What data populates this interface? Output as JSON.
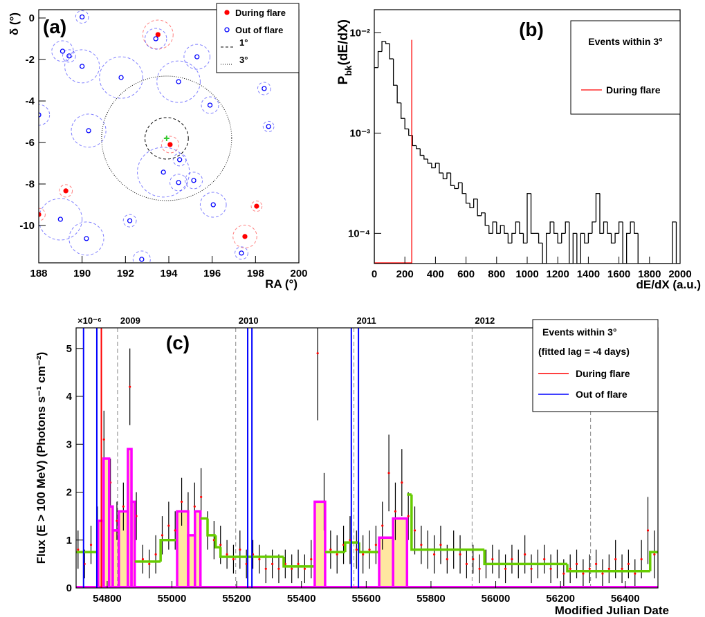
{
  "chart_data": [
    {
      "type": "scatter",
      "panel_label": "(a)",
      "xlabel": "RA (°)",
      "ylabel": "δ (°)",
      "xlim": [
        188,
        200
      ],
      "ylim": [
        -11.8,
        0.4
      ],
      "xticks": [
        188,
        190,
        192,
        194,
        196,
        198,
        200
      ],
      "yticks": [
        0,
        -2,
        -4,
        -6,
        -8,
        -10
      ],
      "series": [
        {
          "name": "During flare",
          "color": "#ff0000",
          "x": [
            193.5,
            194.06,
            189.25,
            188.0,
            198.05,
            197.51
          ],
          "values": [
            -0.8,
            -6.1,
            -8.33,
            -9.47,
            -9.07,
            -10.53
          ],
          "sizes": [
            0.7,
            0.4,
            0.3,
            0.3,
            0.25,
            0.55
          ]
        },
        {
          "name": "Out of flare",
          "color": "#0000ff",
          "x": [
            190.0,
            193.4,
            189.1,
            189.4,
            190.0,
            191.8,
            195.3,
            194.45,
            198.4,
            195.9,
            188.0,
            190.3,
            198.6,
            194.5,
            193.75,
            194.45,
            195.15,
            196.05,
            189.0,
            192.2,
            190.2,
            192.75,
            197.35
          ],
          "values": [
            0.05,
            -1.0,
            -1.6,
            -1.83,
            -2.33,
            -2.87,
            -1.87,
            -3.07,
            -3.4,
            -4.2,
            -4.67,
            -5.43,
            -5.23,
            -6.83,
            -7.43,
            -7.93,
            -7.83,
            -9.0,
            -9.7,
            -9.77,
            -10.63,
            -11.63,
            -11.33
          ],
          "sizes": [
            0.3,
            0.5,
            0.5,
            0.3,
            0.8,
            1.0,
            0.6,
            1.0,
            0.3,
            0.4,
            0.5,
            0.8,
            0.25,
            0.3,
            1.2,
            0.4,
            0.4,
            0.6,
            1.0,
            0.3,
            0.8,
            0.4,
            0.3
          ]
        }
      ],
      "circles": [
        {
          "name": "1°",
          "radius": 1,
          "style": "dashed"
        },
        {
          "name": "3°",
          "radius": 3,
          "style": "dotted"
        }
      ],
      "center": {
        "x": 193.9,
        "y": -5.8,
        "color": "#33cc33"
      }
    },
    {
      "type": "histogram",
      "panel_label": "(b)",
      "xlabel": "dE/dX (a.u.)",
      "ylabel_parts": [
        "P",
        "bk",
        "(dE/dX)"
      ],
      "log_y": true,
      "xlim": [
        0,
        2000
      ],
      "ylim": [
        5e-05,
        0.017
      ],
      "xticks": [
        0,
        200,
        400,
        600,
        800,
        1000,
        1200,
        1400,
        1600,
        1800,
        2000
      ],
      "yticks": [
        {
          "value": 0.0001,
          "label": "10⁻⁴"
        },
        {
          "value": 0.001,
          "label": "10⁻³"
        },
        {
          "value": 0.01,
          "label": "10⁻²"
        }
      ],
      "bins": [
        0,
        25,
        50,
        75,
        100,
        125,
        150,
        175,
        200,
        225,
        250,
        275,
        300,
        325,
        350,
        375,
        400,
        425,
        450,
        475,
        500,
        525,
        550,
        575,
        600,
        625,
        650,
        675,
        700,
        725,
        750,
        775,
        800,
        825,
        850,
        875,
        900,
        925,
        950,
        975,
        1000,
        1025,
        1050,
        1075,
        1100,
        1125,
        1150,
        1175,
        1200,
        1225,
        1250,
        1275,
        1300,
        1325,
        1350,
        1375,
        1400,
        1425,
        1450,
        1475,
        1500,
        1525,
        1550,
        1575,
        1600,
        1625,
        1650,
        1675,
        1700,
        1725,
        1750,
        1775,
        1800,
        1825,
        1850,
        1875,
        1900,
        1925,
        1950,
        1975,
        2000
      ],
      "values": [
        0.0045,
        0.0065,
        0.0082,
        0.0078,
        0.0055,
        0.003,
        0.002,
        0.0014,
        0.0011,
        0.00095,
        0.00075,
        0.0007,
        0.0006,
        0.00055,
        0.0005,
        0.00045,
        0.0005,
        0.0004,
        0.00035,
        0.0004,
        0.0003,
        0.00028,
        0.00032,
        0.00025,
        0.0002,
        0.00018,
        0.00022,
        0.00015,
        0.00016,
        0.00012,
        0.0001,
        0.00013,
        0.0001,
        0.00012,
        0.0001,
        8e-05,
        0.0001,
        0.00013,
        0.0001,
        8e-05,
        0.00025,
        0.0001,
        0.0001,
        8e-05,
        0,
        0.0001,
        0.00013,
        0.0001,
        8e-05,
        0.0001,
        0.00013,
        0,
        0.0001,
        0,
        0.0001,
        8e-05,
        0.0001,
        0.00013,
        0.00025,
        0.0001,
        0.00013,
        0.0001,
        8e-05,
        0.0001,
        0.00013,
        0,
        0.0001,
        0.00013,
        0.0001,
        0,
        0,
        0,
        0,
        0,
        0,
        0,
        0,
        0,
        0.00013,
        0
      ],
      "color": "#000000",
      "legend_title": "Events within 3°",
      "flare": {
        "name": "During flare",
        "color": "#ff0000",
        "x": 245,
        "value": 0.0085
      }
    },
    {
      "type": "errorbar",
      "panel_label": "(c)",
      "xlabel": "Modified Julian Date",
      "ylabel": "Flux (E > 100 MeV) (Photons s⁻¹ cm⁻²)",
      "y_multiplier": "×10⁻⁶",
      "xlim": [
        54704,
        56501
      ],
      "ylim": [
        0,
        5.43
      ],
      "xticks": [
        54800,
        55000,
        55200,
        55400,
        55600,
        55800,
        56000,
        56200,
        56400
      ],
      "yticks": [
        0,
        1,
        2,
        3,
        4,
        5
      ],
      "x": [
        54710,
        54730,
        54750,
        54770,
        54790,
        54810,
        54830,
        54850,
        54870,
        54890,
        54910,
        54930,
        54950,
        54970,
        54990,
        55010,
        55030,
        55050,
        55070,
        55090,
        55110,
        55130,
        55150,
        55170,
        55190,
        55210,
        55230,
        55250,
        55270,
        55290,
        55310,
        55330,
        55350,
        55370,
        55390,
        55410,
        55430,
        55450,
        55470,
        55490,
        55510,
        55530,
        55550,
        55570,
        55590,
        55610,
        55630,
        55650,
        55670,
        55690,
        55710,
        55730,
        55750,
        55770,
        55790,
        55810,
        55830,
        55850,
        55870,
        55890,
        55910,
        55930,
        55950,
        55970,
        55990,
        56010,
        56030,
        56050,
        56070,
        56090,
        56110,
        56130,
        56150,
        56170,
        56190,
        56210,
        56230,
        56250,
        56270,
        56290,
        56310,
        56330,
        56350,
        56370,
        56390,
        56410,
        56430,
        56450,
        56470,
        56490
      ],
      "values": [
        0.8,
        0.5,
        0.9,
        1.2,
        3.1,
        2.2,
        1.4,
        1.7,
        4.2,
        1.5,
        0.6,
        0.5,
        0.7,
        1.1,
        1.3,
        1.2,
        1.8,
        1.5,
        1.7,
        1.9,
        1.2,
        1.0,
        0.9,
        0.7,
        0.6,
        0.8,
        0.5,
        0.7,
        0.6,
        0.4,
        0.5,
        0.4,
        0.5,
        0.4,
        0.5,
        0.4,
        0.6,
        4.9,
        1.8,
        0.8,
        0.7,
        0.9,
        1.0,
        0.8,
        0.7,
        0.8,
        0.9,
        1.3,
        2.4,
        1.6,
        2.2,
        1.5,
        1.2,
        0.9,
        0.8,
        0.7,
        0.9,
        0.6,
        0.8,
        0.7,
        0.5,
        0.6,
        0.4,
        0.5,
        0.6,
        0.5,
        0.4,
        0.6,
        0.5,
        0.7,
        0.4,
        0.5,
        0.6,
        0.4,
        0.5,
        0.3,
        0.4,
        0.5,
        0.3,
        0.4,
        0.5,
        0.3,
        0.4,
        0.6,
        0.4,
        0.5,
        0.3,
        0.6,
        1.2,
        0.7
      ],
      "errors": [
        0.4,
        0.3,
        0.4,
        0.5,
        0.6,
        0.5,
        0.4,
        0.5,
        0.8,
        0.5,
        0.3,
        0.3,
        0.4,
        0.4,
        0.5,
        0.4,
        0.5,
        0.5,
        0.5,
        0.6,
        0.4,
        0.4,
        0.4,
        0.3,
        0.3,
        0.4,
        0.3,
        0.3,
        0.3,
        0.3,
        0.3,
        0.3,
        0.3,
        0.3,
        0.3,
        0.3,
        0.4,
        1.4,
        0.6,
        0.4,
        0.4,
        0.4,
        0.5,
        0.4,
        0.4,
        0.4,
        0.4,
        0.5,
        0.8,
        0.6,
        0.7,
        0.5,
        0.5,
        0.4,
        0.4,
        0.4,
        0.4,
        0.3,
        0.4,
        0.4,
        0.3,
        0.3,
        0.3,
        0.3,
        0.3,
        0.3,
        0.3,
        0.3,
        0.3,
        0.4,
        0.3,
        0.3,
        0.3,
        0.3,
        0.3,
        0.3,
        0.3,
        0.3,
        0.3,
        0.3,
        0.3,
        0.3,
        0.3,
        0.4,
        0.3,
        0.3,
        0.3,
        0.4,
        0.7,
        0.5
      ],
      "point_color": "#ff0000",
      "bar_color": "#000000",
      "blocks": [
        {
          "x0": 54704,
          "x1": 54772,
          "value": 0.75,
          "flare": false
        },
        {
          "x0": 54772,
          "x1": 54789,
          "value": 1.4,
          "flare": true
        },
        {
          "x0": 54789,
          "x1": 54806,
          "value": 2.7,
          "flare": true
        },
        {
          "x0": 54806,
          "x1": 54817,
          "value": 1.7,
          "flare": true
        },
        {
          "x0": 54817,
          "x1": 54836,
          "value": 1.2,
          "flare": true
        },
        {
          "x0": 54836,
          "x1": 54864,
          "value": 1.6,
          "flare": true
        },
        {
          "x0": 54864,
          "x1": 54875,
          "value": 2.9,
          "flare": true
        },
        {
          "x0": 54875,
          "x1": 54885,
          "value": 1.8,
          "flare": true
        },
        {
          "x0": 54885,
          "x1": 54965,
          "value": 0.55,
          "flare": false
        },
        {
          "x0": 54965,
          "x1": 55016,
          "value": 1.0,
          "flare": false
        },
        {
          "x0": 55016,
          "x1": 55050,
          "value": 1.6,
          "flare": true
        },
        {
          "x0": 55050,
          "x1": 55071,
          "value": 1.1,
          "flare": true
        },
        {
          "x0": 55071,
          "x1": 55088,
          "value": 1.6,
          "flare": true
        },
        {
          "x0": 55088,
          "x1": 55110,
          "value": 1.45,
          "flare": false
        },
        {
          "x0": 55110,
          "x1": 55135,
          "value": 1.1,
          "flare": false
        },
        {
          "x0": 55135,
          "x1": 55150,
          "value": 0.85,
          "flare": false
        },
        {
          "x0": 55150,
          "x1": 55345,
          "value": 0.65,
          "flare": false
        },
        {
          "x0": 55345,
          "x1": 55441,
          "value": 0.45,
          "flare": false
        },
        {
          "x0": 55441,
          "x1": 55473,
          "value": 1.8,
          "flare": true
        },
        {
          "x0": 55473,
          "x1": 55535,
          "value": 0.75,
          "flare": false
        },
        {
          "x0": 55535,
          "x1": 55578,
          "value": 0.95,
          "flare": false
        },
        {
          "x0": 55578,
          "x1": 55640,
          "value": 0.75,
          "flare": false
        },
        {
          "x0": 55640,
          "x1": 55683,
          "value": 1.05,
          "flare": true
        },
        {
          "x0": 55683,
          "x1": 55726,
          "value": 1.45,
          "flare": true
        },
        {
          "x0": 55726,
          "x1": 55740,
          "value": 1.95,
          "flare": false
        },
        {
          "x0": 55740,
          "x1": 55965,
          "value": 0.8,
          "flare": false
        },
        {
          "x0": 55965,
          "x1": 56221,
          "value": 0.5,
          "flare": false
        },
        {
          "x0": 56221,
          "x1": 56477,
          "value": 0.35,
          "flare": false
        },
        {
          "x0": 56477,
          "x1": 56501,
          "value": 0.75,
          "flare": false
        }
      ],
      "block_colors": {
        "flare": "#ff00ff",
        "quiet": "#66cc00"
      },
      "fill_color": "#ffe7a0",
      "years": {
        "x": [
          54832,
          55197,
          55562,
          55927,
          56293
        ],
        "labels": [
          "2009",
          "2010",
          "2011",
          "2012",
          null
        ]
      },
      "events": [
        {
          "name": "During flare",
          "color": "#ff0000",
          "x": [
            54782
          ]
        },
        {
          "name": "Out of flare",
          "color": "#0000ff",
          "x": [
            54727,
            54768,
            55234,
            55247,
            55554,
            55576
          ]
        }
      ],
      "legend_lines": [
        "Events within  3°",
        "(fitted lag = -4 days)"
      ]
    }
  ]
}
